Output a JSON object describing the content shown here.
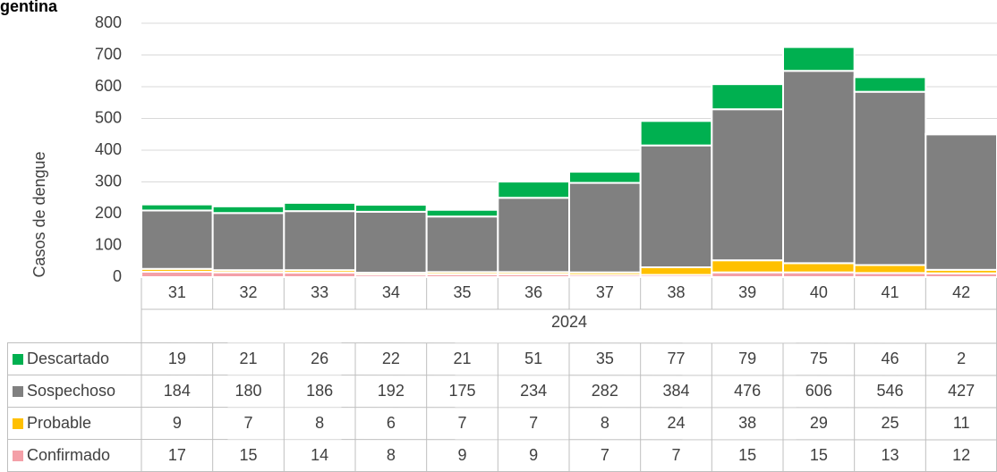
{
  "chart_data": {
    "type": "stacked-bar",
    "title": "gentina",
    "y_label": "Casos de dengue",
    "categories": [
      "31",
      "32",
      "33",
      "34",
      "35",
      "36",
      "37",
      "38",
      "39",
      "40",
      "41",
      "42"
    ],
    "category_group": "2024",
    "series": [
      {
        "name": "Descartado",
        "color": "#00b050",
        "values": [
          19,
          21,
          26,
          22,
          21,
          51,
          35,
          77,
          79,
          75,
          46,
          2
        ]
      },
      {
        "name": "Sospechoso",
        "color": "#808080",
        "values": [
          184,
          180,
          186,
          192,
          175,
          234,
          282,
          384,
          476,
          606,
          546,
          427
        ]
      },
      {
        "name": "Probable",
        "color": "#ffc000",
        "values": [
          9,
          7,
          8,
          6,
          7,
          7,
          8,
          24,
          38,
          29,
          25,
          11
        ]
      },
      {
        "name": "Confirmado",
        "color": "#f4a0a8",
        "values": [
          17,
          15,
          14,
          8,
          9,
          9,
          7,
          7,
          15,
          15,
          13,
          12
        ]
      }
    ],
    "ylim": [
      0,
      800
    ],
    "yticks": [
      0,
      100,
      200,
      300,
      400,
      500,
      600,
      700,
      800
    ],
    "grid": true
  }
}
